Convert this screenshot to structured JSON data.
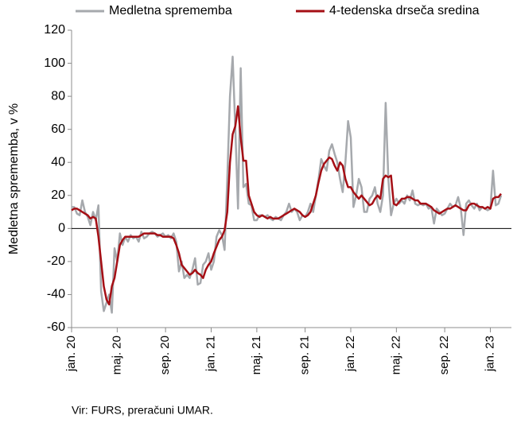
{
  "chart_data": {
    "type": "line",
    "y_label": "Medletna sprememba, v %",
    "source": "Vir: FURS, preračuni UMAR.",
    "categories": [
      "jan. 20",
      null,
      null,
      null,
      null,
      null,
      null,
      null,
      null,
      null,
      null,
      null,
      null,
      null,
      null,
      null,
      null,
      "maj. 20",
      null,
      null,
      null,
      null,
      null,
      null,
      null,
      null,
      null,
      null,
      null,
      null,
      null,
      null,
      null,
      null,
      null,
      "sep. 20",
      null,
      null,
      null,
      null,
      null,
      null,
      null,
      null,
      null,
      null,
      null,
      null,
      null,
      null,
      null,
      null,
      "jan. 21",
      null,
      null,
      null,
      null,
      null,
      null,
      null,
      null,
      null,
      null,
      null,
      null,
      null,
      null,
      null,
      null,
      "maj. 21",
      null,
      null,
      null,
      null,
      null,
      null,
      null,
      null,
      null,
      null,
      null,
      null,
      null,
      null,
      null,
      null,
      null,
      "sep. 21",
      null,
      null,
      null,
      null,
      null,
      null,
      null,
      null,
      null,
      null,
      null,
      null,
      null,
      null,
      null,
      null,
      "jan. 22",
      null,
      null,
      null,
      null,
      null,
      null,
      null,
      null,
      null,
      null,
      null,
      null,
      null,
      null,
      null,
      null,
      "maj. 22",
      null,
      null,
      null,
      null,
      null,
      null,
      null,
      null,
      null,
      null,
      null,
      null,
      null,
      null,
      null,
      null,
      null,
      "sep. 22",
      null,
      null,
      null,
      null,
      null,
      null,
      null,
      null,
      null,
      null,
      null,
      null,
      null,
      null,
      null,
      null,
      "jan. 23",
      null,
      null,
      null,
      null
    ],
    "series": [
      {
        "name": "Medletna sprememba",
        "color": "#a6a9ad",
        "width": 2.5,
        "values": [
          13,
          13,
          9,
          8,
          17,
          10,
          7,
          2,
          10,
          5,
          14,
          -38,
          -50,
          -45,
          -40,
          -51,
          -12,
          -20,
          -3,
          -10,
          -5,
          -8,
          -4,
          -6,
          -5,
          -8,
          -2,
          -6,
          -5,
          -3,
          -2,
          -3,
          -5,
          -4,
          -3,
          -5,
          -4,
          -6,
          -3,
          -8,
          -26,
          -20,
          -30,
          -28,
          -30,
          -25,
          -18,
          -34,
          -33,
          -22,
          -20,
          -15,
          -25,
          -20,
          -5,
          -1,
          -4,
          -13,
          30,
          80,
          104,
          60,
          12,
          97,
          25,
          27,
          15,
          14,
          5,
          5,
          8,
          8,
          7,
          8,
          6,
          5,
          7,
          6,
          5,
          8,
          10,
          15,
          10,
          12,
          10,
          5,
          8,
          7,
          10,
          15,
          10,
          20,
          30,
          42,
          38,
          35,
          47,
          51,
          45,
          40,
          30,
          22,
          40,
          65,
          55,
          13,
          20,
          30,
          25,
          10,
          10,
          18,
          20,
          25,
          15,
          10,
          20,
          76,
          30,
          8,
          15,
          18,
          15,
          17,
          15,
          20,
          17,
          23,
          15,
          14,
          15,
          14,
          15,
          12,
          13,
          3,
          12,
          10,
          8,
          9,
          12,
          15,
          13,
          14,
          19,
          12,
          -4,
          15,
          17,
          14,
          12,
          15,
          11,
          13,
          12,
          11,
          12,
          35,
          14,
          15,
          20
        ]
      },
      {
        "name": "4-tedenska drseča sredina",
        "color": "#a50f15",
        "width": 2.5,
        "values": [
          11,
          12,
          12,
          11,
          10,
          9,
          8,
          6,
          7,
          6,
          -5,
          -20,
          -35,
          -43,
          -46,
          -35,
          -30,
          -20,
          -10,
          -7,
          -5,
          -5,
          -5,
          -5,
          -5,
          -5,
          -4,
          -3,
          -3,
          -3,
          -3,
          -3,
          -4,
          -4,
          -5,
          -5,
          -5,
          -5,
          -6,
          -10,
          -15,
          -22,
          -24,
          -26,
          -28,
          -27,
          -25,
          -27,
          -28,
          -30,
          -25,
          -22,
          -20,
          -15,
          -11,
          -7,
          -5,
          -1,
          10,
          40,
          57,
          62,
          74,
          55,
          41,
          41,
          20,
          15,
          10,
          8,
          7,
          8,
          7,
          6,
          7,
          6,
          6,
          6,
          7,
          8,
          9,
          10,
          11,
          12,
          11,
          10,
          8,
          7,
          8,
          10,
          15,
          20,
          28,
          35,
          39,
          41,
          43,
          42,
          38,
          35,
          40,
          38,
          30,
          25,
          25,
          22,
          20,
          18,
          20,
          18,
          16,
          14,
          15,
          18,
          20,
          18,
          30,
          32,
          31,
          32,
          15,
          14,
          16,
          18,
          18,
          19,
          19,
          18,
          17,
          17,
          15,
          15,
          15,
          14,
          13,
          11,
          10,
          9,
          10,
          11,
          12,
          12,
          13,
          14,
          13,
          12,
          11,
          11,
          14,
          15,
          15,
          14,
          13,
          13,
          12,
          13,
          12,
          18,
          19,
          19,
          21
        ]
      }
    ],
    "ylim": [
      -60,
      120
    ],
    "yticks": [
      -60,
      -40,
      -20,
      0,
      20,
      40,
      60,
      80,
      100,
      120
    ],
    "grid": false
  }
}
